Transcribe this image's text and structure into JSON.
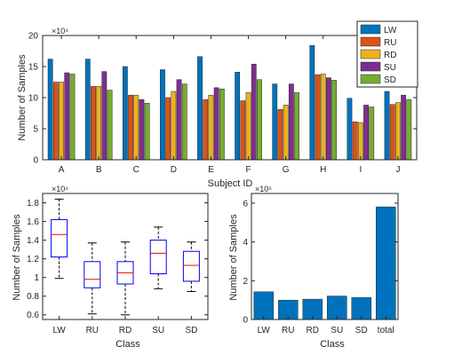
{
  "chart_data": [
    {
      "type": "bar",
      "xlabel": "Subject ID",
      "ylabel": "Number of Samples",
      "exponent_label": "×10⁴",
      "categories": [
        "A",
        "B",
        "C",
        "D",
        "E",
        "F",
        "G",
        "H",
        "I",
        "J"
      ],
      "ylim": [
        0,
        20
      ],
      "yticks": [
        0,
        5,
        10,
        15,
        20
      ],
      "legend_position": "top-right",
      "series": [
        {
          "name": "LW",
          "color": "#0072BD",
          "values": [
            16.2,
            16.2,
            15.0,
            14.5,
            16.6,
            14.1,
            12.2,
            18.4,
            9.9,
            11.0
          ]
        },
        {
          "name": "RU",
          "color": "#D95319",
          "values": [
            12.5,
            11.8,
            10.4,
            10.0,
            9.7,
            9.5,
            8.1,
            13.7,
            6.1,
            8.9
          ]
        },
        {
          "name": "RD",
          "color": "#EDB120",
          "values": [
            12.5,
            11.8,
            10.4,
            11.0,
            10.4,
            10.8,
            8.8,
            13.8,
            6.0,
            9.2
          ]
        },
        {
          "name": "SU",
          "color": "#7E2F8E",
          "values": [
            14.0,
            14.2,
            9.7,
            12.9,
            11.6,
            15.4,
            12.2,
            13.2,
            8.8,
            10.4
          ]
        },
        {
          "name": "SD",
          "color": "#77AC30",
          "values": [
            13.8,
            11.2,
            9.1,
            12.2,
            11.4,
            12.9,
            10.8,
            12.8,
            8.5,
            9.7
          ]
        }
      ]
    },
    {
      "type": "box",
      "xlabel": "Class",
      "ylabel": "Number of Samples",
      "exponent_label": "×10⁴",
      "categories": [
        "LW",
        "RU",
        "RD",
        "SU",
        "SD"
      ],
      "ylim": [
        0.55,
        1.9
      ],
      "yticks": [
        0.6,
        0.8,
        1,
        1.2,
        1.4,
        1.6,
        1.8
      ],
      "ytick_labels": [
        "0.6",
        "0.8",
        "1",
        "1.2",
        "1.4",
        "1.6",
        "1.8"
      ],
      "box_color": "#0000FF",
      "median_color": "#FF0000",
      "whisker_color": "#000000",
      "boxes": [
        {
          "min": 0.99,
          "q1": 1.22,
          "median": 1.46,
          "q3": 1.62,
          "max": 1.84
        },
        {
          "min": 0.61,
          "q1": 0.89,
          "median": 0.98,
          "q3": 1.17,
          "max": 1.37
        },
        {
          "min": 0.6,
          "q1": 0.93,
          "median": 1.05,
          "q3": 1.17,
          "max": 1.38
        },
        {
          "min": 0.88,
          "q1": 1.04,
          "median": 1.26,
          "q3": 1.4,
          "max": 1.54
        },
        {
          "min": 0.85,
          "q1": 0.96,
          "median": 1.13,
          "q3": 1.28,
          "max": 1.38
        }
      ]
    },
    {
      "type": "bar",
      "xlabel": "Class",
      "ylabel": "Number of Samples",
      "exponent_label": "×10⁵",
      "categories": [
        "LW",
        "RU",
        "RD",
        "SU",
        "SD",
        "total"
      ],
      "values": [
        1.43,
        1.0,
        1.05,
        1.21,
        1.13,
        5.81
      ],
      "ylim": [
        0,
        6.5
      ],
      "yticks": [
        0,
        2,
        4,
        6
      ],
      "bar_color": "#0072BD"
    }
  ]
}
